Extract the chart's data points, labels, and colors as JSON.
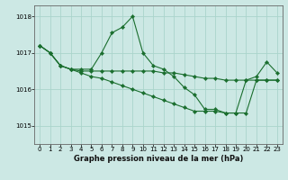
{
  "xlabel": "Graphe pression niveau de la mer (hPa)",
  "xlim": [
    -0.5,
    23.5
  ],
  "ylim": [
    1014.5,
    1018.3
  ],
  "yticks": [
    1015,
    1016,
    1017,
    1018
  ],
  "xticks": [
    0,
    1,
    2,
    3,
    4,
    5,
    6,
    7,
    8,
    9,
    10,
    11,
    12,
    13,
    14,
    15,
    16,
    17,
    18,
    19,
    20,
    21,
    22,
    23
  ],
  "bg_color": "#cce8e4",
  "grid_color": "#aad4cc",
  "line_color": "#1a6e2e",
  "marker_color": "#1a6e2e",
  "series": [
    [
      1017.2,
      1017.0,
      1016.65,
      1016.55,
      1016.55,
      1016.55,
      1017.0,
      1017.55,
      1017.7,
      1018.0,
      1017.0,
      1016.65,
      1016.55,
      1016.35,
      1016.05,
      1015.85,
      1015.45,
      1015.45,
      1015.35,
      1015.35,
      1016.25,
      1016.35,
      1016.75,
      1016.45
    ],
    [
      1017.2,
      1017.0,
      1016.65,
      1016.55,
      1016.5,
      1016.5,
      1016.5,
      1016.5,
      1016.5,
      1016.5,
      1016.5,
      1016.5,
      1016.45,
      1016.45,
      1016.4,
      1016.35,
      1016.3,
      1016.3,
      1016.25,
      1016.25,
      1016.25,
      1016.25,
      1016.25,
      1016.25
    ],
    [
      1017.2,
      1017.0,
      1016.65,
      1016.55,
      1016.45,
      1016.35,
      1016.3,
      1016.2,
      1016.1,
      1016.0,
      1015.9,
      1015.8,
      1015.7,
      1015.6,
      1015.5,
      1015.4,
      1015.4,
      1015.4,
      1015.35,
      1015.35,
      1015.35,
      1016.25,
      1016.25,
      1016.25
    ]
  ]
}
